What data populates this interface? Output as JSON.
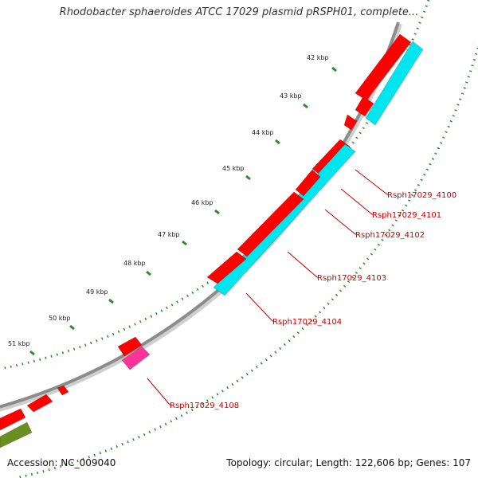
{
  "title": "Rhodobacter sphaeroides ATCC 17029 plasmid pRSPH01, complete...",
  "accession": "Accession: NC_009040",
  "topology_summary": "Topology: circular; Length: 122,606 bp; Genes: 107",
  "colors": {
    "backbone": "#8c8c8c",
    "tick": "#2e8b2e",
    "gene_forward": "#ff0000",
    "gene_reverse": "#00e5ee",
    "gene_pink": "#ff3399",
    "gene_olive": "#6b8e23",
    "label": "#cc0000"
  },
  "scale_labels": [
    "42 kbp",
    "43 kbp",
    "44 kbp",
    "45 kbp",
    "46 kbp",
    "47 kbp",
    "48 kbp",
    "49 kbp",
    "50 kbp",
    "51 kbp"
  ],
  "gene_labels": [
    "Rsph17029_4100",
    "Rsph17029_4101",
    "Rsph17029_4102",
    "Rsph17029_4103",
    "Rsph17029_4104",
    "Rsph17029_4108"
  ]
}
